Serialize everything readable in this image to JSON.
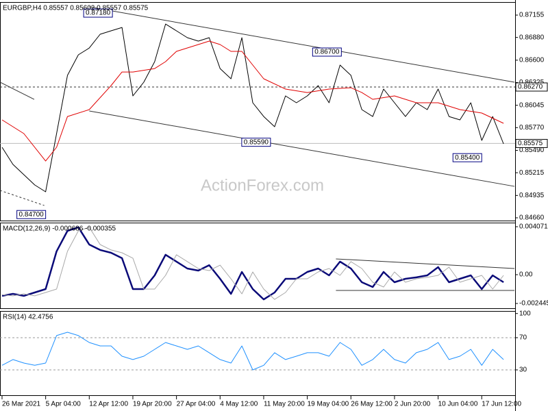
{
  "chart_data": [
    {
      "type": "line",
      "title": "EURGBP,H4  0.85557 0.85602 0.85557 0.85575",
      "x": [
        0,
        8,
        16,
        24,
        32,
        40,
        48,
        56,
        64,
        72,
        80,
        88,
        96,
        104,
        112,
        120,
        128,
        136,
        144,
        152,
        160,
        168,
        176,
        184,
        192,
        200,
        208,
        216,
        224,
        232,
        240,
        248,
        256,
        264,
        272,
        280,
        288,
        296,
        304,
        312,
        320,
        328,
        336,
        344,
        352,
        360,
        368
      ],
      "ylim": [
        0.84626,
        0.87307
      ],
      "yticks": [
        0.87155,
        {
          "value": 0.8688,
          "label": "0.86880"
        },
        {
          "value": 0.866,
          "label": "0.86600"
        },
        0.86325,
        0.86045,
        {
          "value": 0.8577,
          "label": "0.85770"
        },
        {
          "value": 0.8549,
          "label": "0.85490"
        },
        0.85215,
        0.84935,
        {
          "value": 0.8466,
          "label": "0.84660"
        }
      ],
      "series": [
        {
          "color": "#000000",
          "values": [
            0.85528,
            0.85317,
            0.85191,
            0.85064,
            0.8498,
            0.85697,
            0.86413,
            0.86666,
            0.8675,
            0.86919,
            0.86961,
            0.87003,
            0.8616,
            0.86329,
            0.86582,
            0.87045,
            0.86961,
            0.86877,
            0.86835,
            0.86877,
            0.86497,
            0.86371,
            0.86877,
            0.86076,
            0.85907,
            0.85781,
            0.8616,
            0.86076,
            0.8616,
            0.86287,
            0.86076,
            0.8654,
            0.86413,
            0.85992,
            0.85907,
            0.86245,
            0.86076,
            0.85907,
            0.86076,
            0.85992,
            0.86245,
            0.85907,
            0.85865,
            0.86076,
            0.85612,
            0.85907,
            0.8557
          ]
        },
        {
          "color": "#e00000",
          "x": [
            0,
            16,
            32,
            40,
            48,
            64,
            80,
            88,
            96,
            112,
            120,
            128,
            144,
            152,
            160,
            168,
            176,
            184,
            192,
            208,
            224,
            240,
            256,
            264,
            272,
            288,
            304,
            320,
            336,
            352,
            368
          ],
          "values": [
            0.85865,
            0.85697,
            0.85359,
            0.85528,
            0.85907,
            0.85992,
            0.86287,
            0.86455,
            0.86455,
            0.86497,
            0.86582,
            0.86708,
            0.86793,
            0.86835,
            0.86793,
            0.86708,
            0.86708,
            0.8654,
            0.86371,
            0.86245,
            0.86202,
            0.86245,
            0.86261,
            0.86202,
            0.86118,
            0.8616,
            0.86076,
            0.86076,
            0.85992,
            0.8595,
            0.85823
          ]
        }
      ],
      "levels": [
        {
          "value": 0.8627,
          "label": "0.86270",
          "style": "dashed"
        },
        {
          "value": 0.85575,
          "label": "0.85575",
          "style": "solid"
        }
      ],
      "trendlines": [
        {
          "x": [
            64,
            376
          ],
          "values": [
            0.87256,
            0.86329
          ]
        },
        {
          "x": [
            64,
            376
          ],
          "values": [
            0.85975,
            0.85047
          ]
        },
        {
          "x": [
            -1.5,
            23.6
          ],
          "values": [
            0.86329,
            0.86118
          ]
        },
        {
          "x": [
            -1.5,
            31
          ],
          "values": [
            0.84997,
            0.84812
          ],
          "style": "dashed"
        }
      ],
      "annotations": [
        {
          "x": 82,
          "value": 0.8718,
          "label": "0.87180"
        },
        {
          "x": 250,
          "value": 0.867,
          "label": "0.86700"
        },
        {
          "x": 198,
          "value": 0.8559,
          "label": "0.85590"
        },
        {
          "x": 353,
          "value": 0.854,
          "label": "0.85400"
        },
        {
          "x": 33,
          "value": 0.847,
          "label": "0.84700"
        }
      ],
      "watermark": "ActionForex.com"
    },
    {
      "type": "line",
      "title": "MACD(12,26,9) -0.000686 -0.000355",
      "x": [
        0,
        8,
        16,
        24,
        32,
        40,
        48,
        56,
        64,
        72,
        80,
        88,
        96,
        104,
        112,
        120,
        128,
        136,
        144,
        152,
        160,
        168,
        176,
        184,
        192,
        200,
        208,
        216,
        224,
        232,
        240,
        248,
        256,
        264,
        272,
        280,
        288,
        296,
        304,
        312,
        320,
        328,
        336,
        344,
        352,
        360,
        368
      ],
      "ylim": [
        -0.00285,
        0.00436
      ],
      "yticks": [
        0.004071,
        {
          "value": 0,
          "label": "0.00"
        },
        -0.002445
      ],
      "series": [
        {
          "color": "#0a0a78",
          "width": 2.5,
          "values": [
            -0.0018,
            -0.00163,
            -0.0018,
            -0.00151,
            -0.00122,
            0.00198,
            0.00372,
            0.00402,
            0.00256,
            0.0021,
            0.00186,
            0.0014,
            -0.00122,
            -0.00122,
            -6e-05,
            0.00169,
            0.00111,
            0.00052,
            0.00035,
            0.00081,
            -0.00035,
            -0.00163,
            0.00023,
            -0.00122,
            -0.0021,
            -0.00151,
            -0.00035,
            -0.00035,
            0.00023,
            0.00052,
            -6e-05,
            0.00111,
            0.00052,
            -0.00064,
            -0.00105,
            0.00023,
            -0.00064,
            -0.00035,
            -0.00023,
            -6e-05,
            0.00064,
            -0.00064,
            -0.00035,
            -6e-05,
            -0.00122,
            -6e-05,
            -0.00064
          ]
        },
        {
          "color": "#a8a8a8",
          "width": 1,
          "values": [
            -0.0017,
            -0.0018,
            -0.00163,
            -0.0018,
            -0.00151,
            -0.00122,
            0.00198,
            0.00372,
            0.00402,
            0.00256,
            0.0021,
            0.00186,
            0.0014,
            -0.00122,
            -0.00122,
            -6e-05,
            0.00169,
            0.00111,
            0.00052,
            0.00035,
            0.00081,
            -0.00035,
            -0.00163,
            0.00023,
            -0.00122,
            -0.0021,
            -0.00151,
            -0.00035,
            -0.00035,
            0.00023,
            0.00052,
            -6e-05,
            0.00111,
            0.00052,
            -0.00064,
            -0.00105,
            0.00023,
            -0.00064,
            -0.00035,
            -0.00023,
            -6e-05,
            0.00064,
            -0.00064,
            -0.00035,
            -6e-05,
            -0.00122,
            -6e-05
          ]
        }
      ],
      "trendlines": [
        {
          "x": [
            245,
            376
          ],
          "values": [
            0.00134,
            0.00052
          ]
        },
        {
          "x": [
            245,
            376
          ],
          "values": [
            -0.00134,
            -0.00134
          ]
        }
      ]
    },
    {
      "type": "line",
      "title": "RSI(14) 42.4756",
      "x": [
        0,
        8,
        16,
        24,
        32,
        40,
        48,
        56,
        64,
        72,
        80,
        88,
        96,
        104,
        112,
        120,
        128,
        136,
        144,
        152,
        160,
        168,
        176,
        184,
        192,
        200,
        208,
        216,
        224,
        232,
        240,
        248,
        256,
        264,
        272,
        280,
        288,
        296,
        304,
        312,
        320,
        328,
        336,
        344,
        352,
        360,
        368
      ],
      "ylim": [
        -1.5,
        102.3
      ],
      "yticks": [
        100,
        70,
        30
      ],
      "level_lines": [
        70,
        30
      ],
      "series": [
        {
          "color": "#1e90ff",
          "width": 1,
          "values": [
            35.7,
            42.8,
            38.5,
            35.7,
            38.5,
            72.6,
            76.8,
            72.6,
            64,
            59.8,
            59.8,
            47,
            42.8,
            47,
            55.5,
            64,
            59.8,
            55.5,
            59.8,
            51.3,
            42.8,
            38.5,
            59.8,
            30,
            35.7,
            51.3,
            42.8,
            47,
            51.3,
            51.3,
            47,
            64,
            55.5,
            35.7,
            42.8,
            55.5,
            42.8,
            38.5,
            51.3,
            55.5,
            64,
            42.8,
            47,
            55.5,
            35.7,
            55.5,
            42.8
          ]
        }
      ],
      "xlim": [
        -1.5,
        376.5
      ],
      "xticks": [
        {
          "value": 0,
          "label": "26 Mar 2021"
        },
        {
          "value": 32,
          "label": "5 Apr 04:00"
        },
        {
          "value": 64,
          "label": "12 Apr 12:00"
        },
        {
          "value": 96,
          "label": "19 Apr 20:00"
        },
        {
          "value": 128,
          "label": "27 Apr 04:00"
        },
        {
          "value": 160,
          "label": "4 May 12:00"
        },
        {
          "value": 192,
          "label": "11 May 20:00"
        },
        {
          "value": 224,
          "label": "19 May 04:00"
        },
        {
          "value": 256,
          "label": "26 May 12:00"
        },
        {
          "value": 288,
          "label": "2 Jun 20:00"
        },
        {
          "value": 320,
          "label": "10 Jun 04:00"
        },
        {
          "value": 352,
          "label": "17 Jun 12:00"
        }
      ]
    }
  ]
}
